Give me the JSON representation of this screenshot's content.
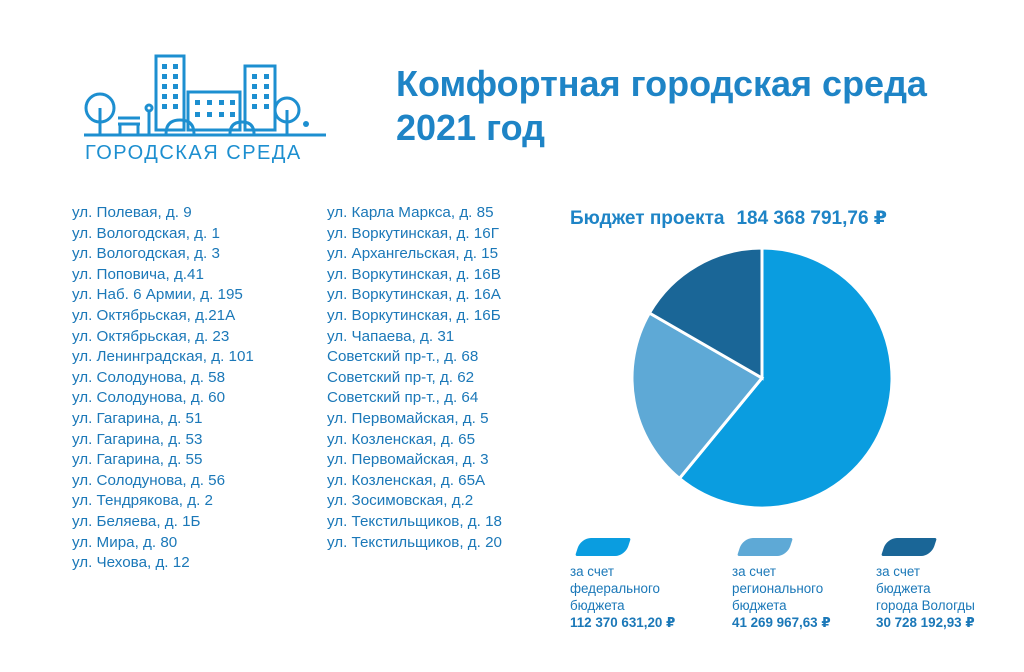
{
  "logo": {
    "text": "ГОРОДСКАЯ СРЕДА"
  },
  "title": {
    "line1": "Комфортная городская среда",
    "line2": "2021 год"
  },
  "addresses": {
    "left": [
      "ул. Полевая, д. 9",
      "ул. Вологодская, д. 1",
      "ул. Вологодская, д. 3",
      "ул. Поповича, д.41",
      "ул. Наб. 6 Армии, д. 195",
      "ул. Октябрьская, д.21А",
      "ул. Октябрьская, д. 23",
      "ул. Ленинградская, д. 101",
      "ул. Солодунова, д. 58",
      "ул. Солодунова, д. 60",
      "ул. Гагарина, д. 51",
      "ул. Гагарина, д. 53",
      "ул. Гагарина, д. 55",
      "ул. Солодунова, д. 56",
      "ул. Тендрякова, д. 2",
      "ул. Беляева, д. 1Б",
      "ул. Мира, д. 80",
      "ул. Чехова, д. 12"
    ],
    "right": [
      "ул. Карла Маркса, д. 85",
      "ул. Воркутинская, д. 16Г",
      "ул. Архангельская, д. 15",
      "ул. Воркутинская, д. 16В",
      "ул. Воркутинская, д. 16А",
      "ул. Воркутинская, д. 16Б",
      "ул. Чапаева, д. 31",
      "Советский пр-т., д. 68",
      "Советский пр-т, д. 62",
      "Советский пр-т., д. 64",
      "ул. Первомайская, д. 5",
      "ул. Козленская, д. 65",
      "ул. Первомайская, д. 3",
      "ул. Козленская, д. 65А",
      "ул. Зосимовская, д.2",
      "ул. Текстильщиков, д. 18",
      "ул. Текстильщиков, д. 20"
    ]
  },
  "budget": {
    "label": "Бюджет проекта",
    "total": "184 368 791,76 ₽"
  },
  "chart_data": {
    "type": "pie",
    "slices": [
      {
        "label": "за счет\nфедерального\nбюджета",
        "amount": "112 370 631,20 ₽",
        "value": 112370631.2,
        "color": "#0a9de0"
      },
      {
        "label": "за счет\nрегионального\nбюджета",
        "amount": "41 269 967,63 ₽",
        "value": 41269967.63,
        "color": "#5ea9d6"
      },
      {
        "label": "за счет\nбюджета\nгорода Вологды",
        "amount": "30 728 192,93 ₽",
        "value": 30728192.93,
        "color": "#1a6697"
      }
    ]
  },
  "colors": {
    "title": "#1e84c6",
    "text": "#1b78b8",
    "federal": "#0a9de0",
    "regional": "#5ea9d6",
    "city": "#1a6697"
  }
}
